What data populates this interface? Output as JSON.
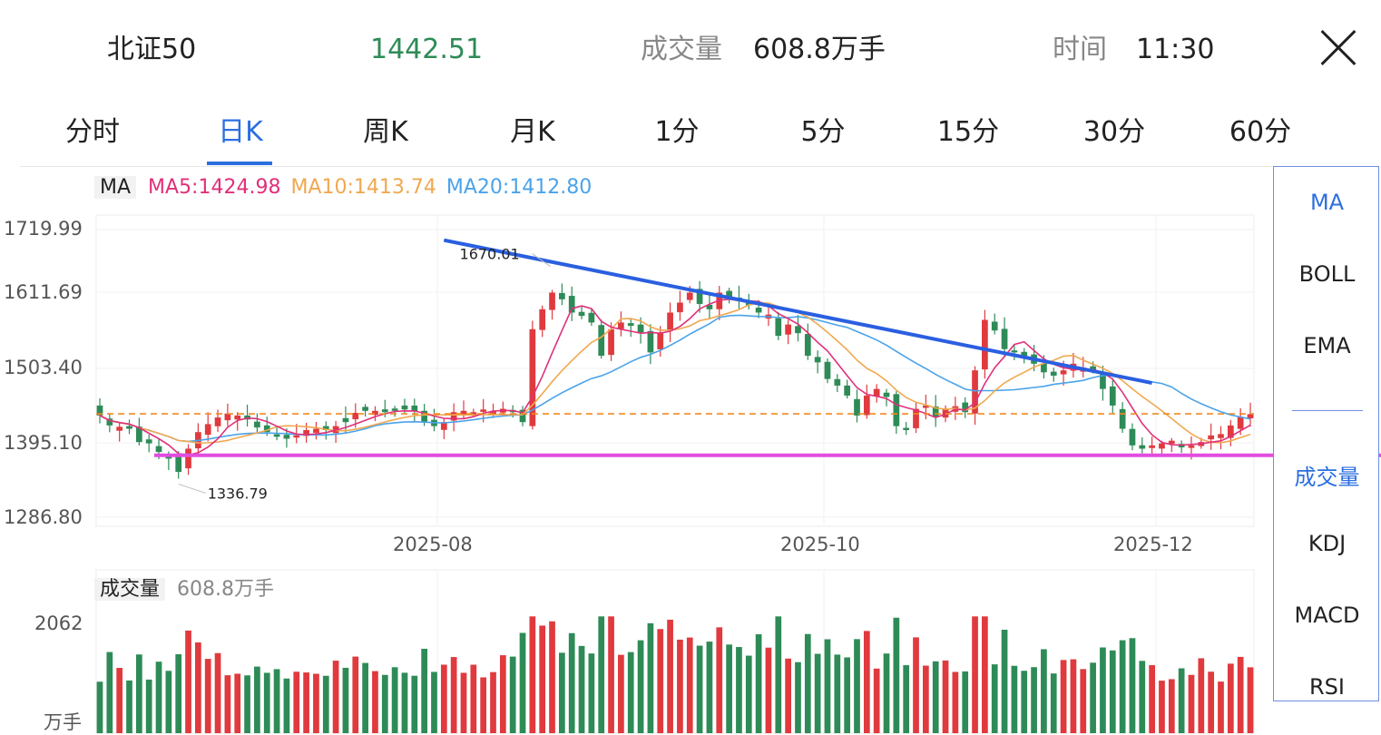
{
  "header": {
    "name": "北证50",
    "price": "1442.51",
    "volume_label": "成交量",
    "volume_value": "608.8万手",
    "time_label": "时间",
    "time_value": "11:30",
    "price_color": "#2e8b57"
  },
  "tabs": [
    "分时",
    "日K",
    "周K",
    "月K",
    "1分",
    "5分",
    "15分",
    "30分",
    "60分"
  ],
  "active_tab": "日K",
  "indicators": {
    "ma_tag": "MA",
    "ma5": "MA5:1424.98",
    "ma10": "MA10:1413.74",
    "ma20": "MA20:1412.80",
    "colors": {
      "ma5": "#e0307a",
      "ma10": "#f0a850",
      "ma20": "#4aa3ea",
      "up": "#e03a3e",
      "down": "#2e8b57"
    }
  },
  "volume_panel": {
    "label": "成交量",
    "value": "608.8万手",
    "ymax_label": "2062",
    "unit_label": "万手"
  },
  "side_menu": [
    "MA",
    "BOLL",
    "EMA",
    "成交量",
    "KDJ",
    "MACD",
    "RSI"
  ],
  "annotations": {
    "high_label": "1670.01",
    "low_label": "1336.79"
  },
  "chart_data": {
    "type": "candlestick",
    "y_ticks": [
      "1719.99",
      "1611.69",
      "1503.40",
      "1395.10",
      "1286.80"
    ],
    "ylim": [
      1286.8,
      1719.99
    ],
    "x_ticks": [
      "2025-08",
      "2025-10",
      "2025-12"
    ],
    "x_tick_index": [
      28,
      60,
      88
    ],
    "high": 1670.01,
    "low": 1336.79,
    "reference_price": 1442.51,
    "support_level": 1380.0,
    "resistance_trendline": [
      [
        35,
        1704
      ],
      [
        107,
        1489
      ]
    ],
    "closes": [
      1440,
      1425,
      1423,
      1420,
      1400,
      1398,
      1385,
      1375,
      1355,
      1390,
      1415,
      1427,
      1437,
      1443,
      1440,
      1434,
      1422,
      1415,
      1408,
      1405,
      1410,
      1418,
      1420,
      1418,
      1424,
      1430,
      1444,
      1447,
      1447,
      1445,
      1447,
      1449,
      1446,
      1430,
      1424,
      1430,
      1445,
      1447,
      1445,
      1449,
      1447,
      1450,
      1445,
      1430,
      1570,
      1600,
      1625,
      1615,
      1595,
      1590,
      1580,
      1530,
      1570,
      1580,
      1575,
      1565,
      1535,
      1565,
      1595,
      1610,
      1625,
      1608,
      1600,
      1625,
      1618,
      1614,
      1606,
      1595,
      1592,
      1560,
      1577,
      1564,
      1530,
      1520,
      1495,
      1485,
      1470,
      1440,
      1470,
      1480,
      1468,
      1424,
      1418,
      1450,
      1455,
      1438,
      1450,
      1454,
      1445,
      1508,
      1584,
      1568,
      1540,
      1535,
      1528,
      1518,
      1505,
      1500,
      1508,
      1518,
      1512,
      1508,
      1480,
      1455,
      1420,
      1395,
      1390,
      1395,
      1398,
      1402,
      1392,
      1395,
      1400,
      1410,
      1412,
      1425,
      1438,
      1442
    ],
    "volume_unit": "万手",
    "volume_ymax": 2062
  }
}
